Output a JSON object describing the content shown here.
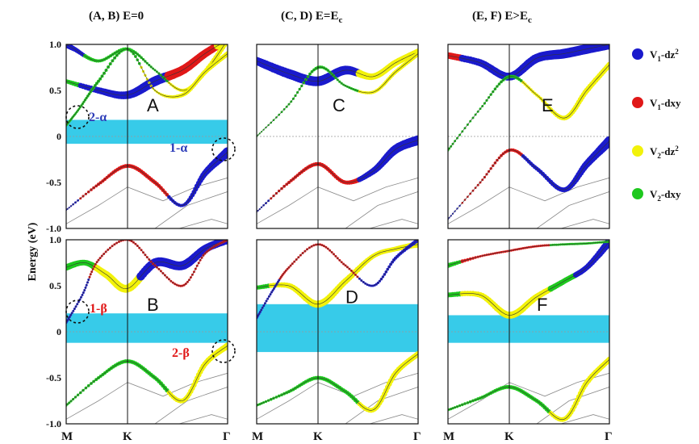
{
  "chart_data": {
    "type": "line",
    "column_titles": [
      "(A, B) E=0",
      "(C, D) E=E",
      "(E, F) E>E"
    ],
    "column_title_subscripts": [
      "",
      "c",
      "c"
    ],
    "ylabel": "Energy (eV)",
    "y_ticks": [
      "1.0",
      "0.5",
      "0",
      "-0.5",
      "-1.0"
    ],
    "ylim": [
      -1.0,
      1.0
    ],
    "k_labels": [
      "M",
      "K",
      "Γ"
    ],
    "legend": [
      {
        "label": "V",
        "sub": "1",
        "orb": "-dz",
        "sup": "2",
        "color": "#1a1acc"
      },
      {
        "label": "V",
        "sub": "1",
        "orb": "-dxy",
        "sup": "",
        "color": "#e01818"
      },
      {
        "label": "V",
        "sub": "2",
        "orb": "-dz",
        "sup": "2",
        "color": "#f2f20a"
      },
      {
        "label": "V",
        "sub": "2",
        "orb": "-dxy",
        "sup": "",
        "color": "#1ec81e"
      }
    ],
    "annotations": [
      {
        "panel": "A",
        "text": "2-α",
        "color": "#2b3bb8"
      },
      {
        "panel": "A",
        "text": "1-α",
        "color": "#2b3bb8"
      },
      {
        "panel": "B",
        "text": "1-β",
        "color": "#e01818"
      },
      {
        "panel": "B",
        "text": "2-β",
        "color": "#e01818"
      }
    ],
    "panels": [
      {
        "label": "A",
        "gap_band": [
          -0.08,
          0.18
        ],
        "bands": [
          {
            "x": [
              0,
              0.2,
              0.38,
              0.55,
              0.72,
              0.86,
              1
            ],
            "y": [
              0.6,
              0.5,
              0.45,
              0.6,
              0.72,
              0.9,
              1.05
            ],
            "widths": [
              5,
              8,
              10,
              12,
              11,
              10,
              9
            ],
            "colors": [
              "#1ec81e",
              "#1a1acc",
              "#1a1acc",
              "#1a1acc",
              "#e01818",
              "#e01818",
              "#f2f20a"
            ]
          },
          {
            "x": [
              0,
              0.05,
              0.2,
              0.38,
              0.55,
              0.72,
              0.86,
              1
            ],
            "y": [
              1.0,
              0.95,
              0.82,
              0.95,
              0.72,
              0.5,
              0.7,
              1.05
            ],
            "widths": [
              8,
              6,
              4,
              4,
              3,
              4,
              6,
              7
            ],
            "colors": [
              "#1a1acc",
              "#1a1acc",
              "#1ec81e",
              "#1ec81e",
              "#1ec81e",
              "#f2f20a",
              "#f2f20a",
              "#f2f20a"
            ]
          },
          {
            "x": [
              0,
              0.08,
              0.2,
              0.38,
              0.55,
              0.72,
              0.86,
              1
            ],
            "y": [
              0.12,
              0.3,
              0.6,
              0.95,
              0.5,
              0.45,
              0.7,
              0.9
            ],
            "widths": [
              3,
              3,
              4,
              4,
              3,
              5,
              6,
              6
            ],
            "colors": [
              "#1ec81e",
              "#1ec81e",
              "#1ec81e",
              "#1ec81e",
              "#f2f20a",
              "#f2f20a",
              "#f2f20a",
              "#f2f20a"
            ]
          },
          {
            "x": [
              0,
              0.2,
              0.38,
              0.55,
              0.72,
              0.86,
              1
            ],
            "y": [
              -0.8,
              -0.52,
              -0.32,
              -0.5,
              -0.75,
              -0.4,
              -0.17
            ],
            "widths": [
              2,
              4,
              5,
              5,
              4,
              8,
              12
            ],
            "colors": [
              "#1a1acc",
              "#e01818",
              "#e01818",
              "#e01818",
              "#1a1acc",
              "#1a1acc",
              "#1a1acc"
            ]
          }
        ]
      },
      {
        "label": "C",
        "gap_band": null,
        "bands": [
          {
            "x": [
              0,
              0.2,
              0.38,
              0.55,
              0.72,
              0.86,
              1
            ],
            "y": [
              0.82,
              0.68,
              0.6,
              0.72,
              0.65,
              0.8,
              0.92
            ],
            "widths": [
              10,
              12,
              12,
              11,
              8,
              8,
              8
            ],
            "colors": [
              "#1a1acc",
              "#1a1acc",
              "#1a1acc",
              "#1a1acc",
              "#f2f20a",
              "#f2f20a",
              "#f2f20a"
            ]
          },
          {
            "x": [
              0,
              0.2,
              0.38,
              0.55,
              0.72,
              0.86,
              1
            ],
            "y": [
              0.0,
              0.35,
              0.75,
              0.55,
              0.48,
              0.7,
              0.9
            ],
            "widths": [
              2,
              3,
              4,
              3,
              4,
              5,
              6
            ],
            "colors": [
              "#1ec81e",
              "#1ec81e",
              "#1ec81e",
              "#1ec81e",
              "#f2f20a",
              "#f2f20a",
              "#f2f20a"
            ]
          },
          {
            "x": [
              0,
              0.2,
              0.38,
              0.55,
              0.72,
              0.86,
              1
            ],
            "y": [
              -0.82,
              -0.5,
              -0.3,
              -0.5,
              -0.38,
              -0.14,
              -0.04
            ],
            "widths": [
              2,
              4,
              5,
              5,
              8,
              11,
              12
            ],
            "colors": [
              "#1a1acc",
              "#e01818",
              "#e01818",
              "#e01818",
              "#1a1acc",
              "#1a1acc",
              "#1a1acc"
            ]
          }
        ]
      },
      {
        "label": "E",
        "gap_band": null,
        "bands": [
          {
            "x": [
              0,
              0.2,
              0.38,
              0.55,
              0.72,
              0.86,
              1
            ],
            "y": [
              0.88,
              0.8,
              0.65,
              0.85,
              0.9,
              0.95,
              1.0
            ],
            "widths": [
              8,
              9,
              10,
              11,
              12,
              12,
              12
            ],
            "colors": [
              "#e01818",
              "#1a1acc",
              "#1a1acc",
              "#1a1acc",
              "#1a1acc",
              "#1a1acc",
              "#1a1acc"
            ]
          },
          {
            "x": [
              0,
              0.2,
              0.38,
              0.55,
              0.72,
              0.86,
              1
            ],
            "y": [
              -0.15,
              0.3,
              0.65,
              0.45,
              0.2,
              0.5,
              0.78
            ],
            "widths": [
              3,
              3,
              4,
              4,
              6,
              7,
              7
            ],
            "colors": [
              "#1ec81e",
              "#1ec81e",
              "#1ec81e",
              "#f2f20a",
              "#f2f20a",
              "#f2f20a",
              "#f2f20a"
            ]
          },
          {
            "x": [
              0,
              0.2,
              0.38,
              0.55,
              0.72,
              0.86,
              1
            ],
            "y": [
              -0.9,
              -0.5,
              -0.15,
              -0.35,
              -0.58,
              -0.3,
              -0.05
            ],
            "widths": [
              2,
              3,
              4,
              5,
              6,
              9,
              12
            ],
            "colors": [
              "#1a1acc",
              "#e01818",
              "#e01818",
              "#1a1acc",
              "#1a1acc",
              "#1a1acc",
              "#1a1acc"
            ]
          }
        ]
      },
      {
        "label": "B",
        "gap_band": [
          -0.12,
          0.2
        ],
        "bands": [
          {
            "x": [
              0,
              0.12,
              0.25,
              0.38,
              0.55,
              0.72,
              0.86,
              1
            ],
            "y": [
              0.7,
              0.75,
              0.62,
              0.47,
              0.75,
              0.72,
              0.9,
              1.0
            ],
            "widths": [
              8,
              7,
              9,
              10,
              11,
              11,
              10,
              10
            ],
            "colors": [
              "#1ec81e",
              "#1ec81e",
              "#f2f20a",
              "#f2f20a",
              "#1a1acc",
              "#1a1acc",
              "#1a1acc",
              "#1a1acc"
            ]
          },
          {
            "x": [
              0,
              0.1,
              0.2,
              0.38,
              0.55,
              0.72,
              0.86,
              1
            ],
            "y": [
              0.1,
              0.4,
              0.78,
              1.0,
              0.72,
              0.5,
              0.85,
              1.0
            ],
            "widths": [
              3,
              3,
              3,
              3,
              3,
              3,
              3,
              3
            ],
            "colors": [
              "#1a1acc",
              "#1a1acc",
              "#e01818",
              "#e01818",
              "#e01818",
              "#e01818",
              "#e01818",
              "#e01818"
            ]
          },
          {
            "x": [
              0,
              0.2,
              0.38,
              0.55,
              0.72,
              0.86,
              1
            ],
            "y": [
              -0.8,
              -0.5,
              -0.32,
              -0.5,
              -0.75,
              -0.35,
              -0.15
            ],
            "widths": [
              3,
              4,
              5,
              5,
              6,
              7,
              8
            ],
            "colors": [
              "#1ec81e",
              "#1ec81e",
              "#1ec81e",
              "#1ec81e",
              "#f2f20a",
              "#f2f20a",
              "#f2f20a"
            ]
          }
        ]
      },
      {
        "label": "D",
        "gap_band": [
          -0.22,
          0.3
        ],
        "bands": [
          {
            "x": [
              0,
              0.2,
              0.38,
              0.55,
              0.72,
              0.86,
              1
            ],
            "y": [
              0.48,
              0.5,
              0.3,
              0.55,
              0.82,
              0.9,
              0.95
            ],
            "widths": [
              5,
              7,
              9,
              8,
              6,
              6,
              8
            ],
            "colors": [
              "#1ec81e",
              "#f2f20a",
              "#f2f20a",
              "#f2f20a",
              "#f2f20a",
              "#f2f20a",
              "#f2f20a"
            ]
          },
          {
            "x": [
              0,
              0.1,
              0.2,
              0.38,
              0.55,
              0.72,
              0.86,
              1
            ],
            "y": [
              0.15,
              0.45,
              0.7,
              0.95,
              0.72,
              0.5,
              0.8,
              1.0
            ],
            "widths": [
              3,
              3,
              3,
              3,
              3,
              3,
              4,
              5
            ],
            "colors": [
              "#1a1acc",
              "#1a1acc",
              "#e01818",
              "#e01818",
              "#e01818",
              "#1a1acc",
              "#1a1acc",
              "#1a1acc"
            ]
          },
          {
            "x": [
              0,
              0.2,
              0.38,
              0.55,
              0.72,
              0.86,
              1
            ],
            "y": [
              -0.8,
              -0.65,
              -0.5,
              -0.65,
              -0.85,
              -0.45,
              -0.24
            ],
            "widths": [
              3,
              4,
              5,
              5,
              6,
              7,
              7
            ],
            "colors": [
              "#1ec81e",
              "#1ec81e",
              "#1ec81e",
              "#1ec81e",
              "#f2f20a",
              "#f2f20a",
              "#f2f20a"
            ]
          }
        ]
      },
      {
        "label": "F",
        "gap_band": [
          -0.12,
          0.18
        ],
        "bands": [
          {
            "x": [
              0,
              0.2,
              0.38,
              0.55,
              0.72,
              0.86,
              1
            ],
            "y": [
              0.4,
              0.4,
              0.18,
              0.38,
              0.55,
              0.7,
              0.98
            ],
            "widths": [
              6,
              7,
              9,
              8,
              7,
              7,
              10
            ],
            "colors": [
              "#1ec81e",
              "#f2f20a",
              "#f2f20a",
              "#f2f20a",
              "#1ec81e",
              "#1a1acc",
              "#1a1acc"
            ]
          },
          {
            "x": [
              0,
              0.2,
              0.38,
              0.55,
              0.72,
              0.86,
              1
            ],
            "y": [
              0.72,
              0.82,
              0.88,
              0.93,
              0.95,
              0.96,
              0.98
            ],
            "widths": [
              6,
              3,
              3,
              3,
              3,
              3,
              3
            ],
            "colors": [
              "#1ec81e",
              "#e01818",
              "#e01818",
              "#e01818",
              "#1ec81e",
              "#1ec81e",
              "#1ec81e"
            ]
          },
          {
            "x": [
              0,
              0.2,
              0.38,
              0.55,
              0.72,
              0.86,
              1
            ],
            "y": [
              -0.85,
              -0.72,
              -0.6,
              -0.75,
              -0.95,
              -0.55,
              -0.3
            ],
            "widths": [
              3,
              4,
              5,
              5,
              6,
              7,
              7
            ],
            "colors": [
              "#1ec81e",
              "#1ec81e",
              "#1ec81e",
              "#1ec81e",
              "#f2f20a",
              "#f2f20a",
              "#f2f20a"
            ]
          }
        ]
      }
    ]
  }
}
